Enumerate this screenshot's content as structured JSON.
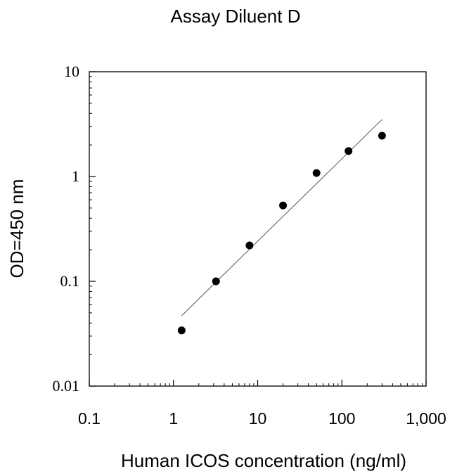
{
  "chart_data": {
    "type": "scatter",
    "title": "Assay Diluent D",
    "xlabel": "Human ICOS concentration (ng/ml)",
    "ylabel": "OD=450 nm",
    "xscale": "log",
    "yscale": "log",
    "xlim": [
      0.1,
      1000
    ],
    "ylim": [
      0.01,
      10
    ],
    "x_ticks": [
      0.1,
      1,
      10,
      100,
      1000
    ],
    "x_tick_labels": [
      "0.1",
      "1",
      "10",
      "100",
      "1,000"
    ],
    "y_ticks": [
      0.01,
      0.1,
      1,
      10
    ],
    "y_tick_labels": [
      "0.01",
      "0.1",
      "1",
      "10"
    ],
    "grid": false,
    "legend": "none",
    "series": [
      {
        "x": [
          1.25,
          3.2,
          8,
          20,
          50,
          120,
          300
        ],
        "y": [
          0.034,
          0.1,
          0.22,
          0.53,
          1.08,
          1.75,
          2.45
        ]
      }
    ],
    "fit_line": {
      "x": [
        1.25,
        300
      ],
      "y": [
        0.047,
        3.5
      ]
    },
    "colors": {
      "points": "#000000",
      "fit_line": "#555555",
      "axes": "#000000"
    }
  }
}
